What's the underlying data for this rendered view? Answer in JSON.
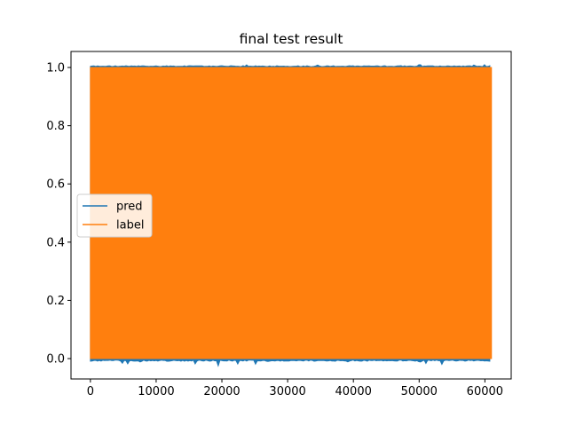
{
  "chart_data": {
    "type": "line",
    "title": "final test result",
    "xlabel": "",
    "ylabel": "",
    "xlim": [
      -2950,
      64000
    ],
    "ylim": [
      -0.07,
      1.055
    ],
    "xticks": [
      0,
      10000,
      20000,
      30000,
      40000,
      50000,
      60000
    ],
    "xtick_labels": [
      "0",
      "10000",
      "20000",
      "30000",
      "40000",
      "50000",
      "60000"
    ],
    "yticks": [
      0.0,
      0.2,
      0.4,
      0.6,
      0.8,
      1.0
    ],
    "ytick_labels": [
      "0.0",
      "0.2",
      "0.4",
      "0.6",
      "0.8",
      "1.0"
    ],
    "grid": false,
    "legend_position": "center-left",
    "series": [
      {
        "name": "pred",
        "color": "#1f77b4",
        "x_range": [
          0,
          61000
        ],
        "band": [
          -0.005,
          1.003
        ],
        "extreme_low": -0.025,
        "extreme_high": 1.01,
        "description_note": ""
      },
      {
        "name": "label",
        "color": "#ff7f0e",
        "x_range": [
          0,
          61000
        ],
        "band": [
          0.0,
          1.0
        ]
      }
    ]
  }
}
